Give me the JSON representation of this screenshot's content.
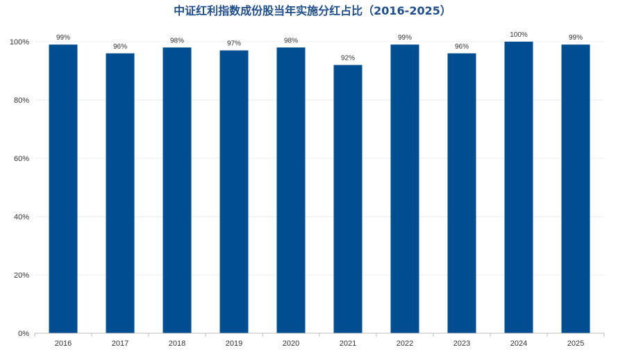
{
  "chart_data": {
    "type": "bar",
    "title": "中证红利指数成份股当年实施分红占比（2016-2025）",
    "categories": [
      "2016",
      "2017",
      "2018",
      "2019",
      "2020",
      "2021",
      "2022",
      "2023",
      "2024",
      "2025"
    ],
    "series": [
      {
        "values": [
          99,
          96,
          98,
          97,
          98,
          92,
          99,
          96,
          100,
          99
        ]
      }
    ],
    "data_labels": [
      "99%",
      "96%",
      "98%",
      "97%",
      "98%",
      "92%",
      "99%",
      "96%",
      "100%",
      "99%"
    ],
    "ytick_labels": [
      "0%",
      "20%",
      "40%",
      "60%",
      "80%",
      "100%"
    ],
    "yticks": [
      0,
      20,
      40,
      60,
      80,
      100
    ],
    "ylim": [
      0,
      100
    ],
    "xlabel": "",
    "ylabel": "",
    "grid": true,
    "bar_color": "#004e92",
    "title_color": "#1f4e8c"
  }
}
